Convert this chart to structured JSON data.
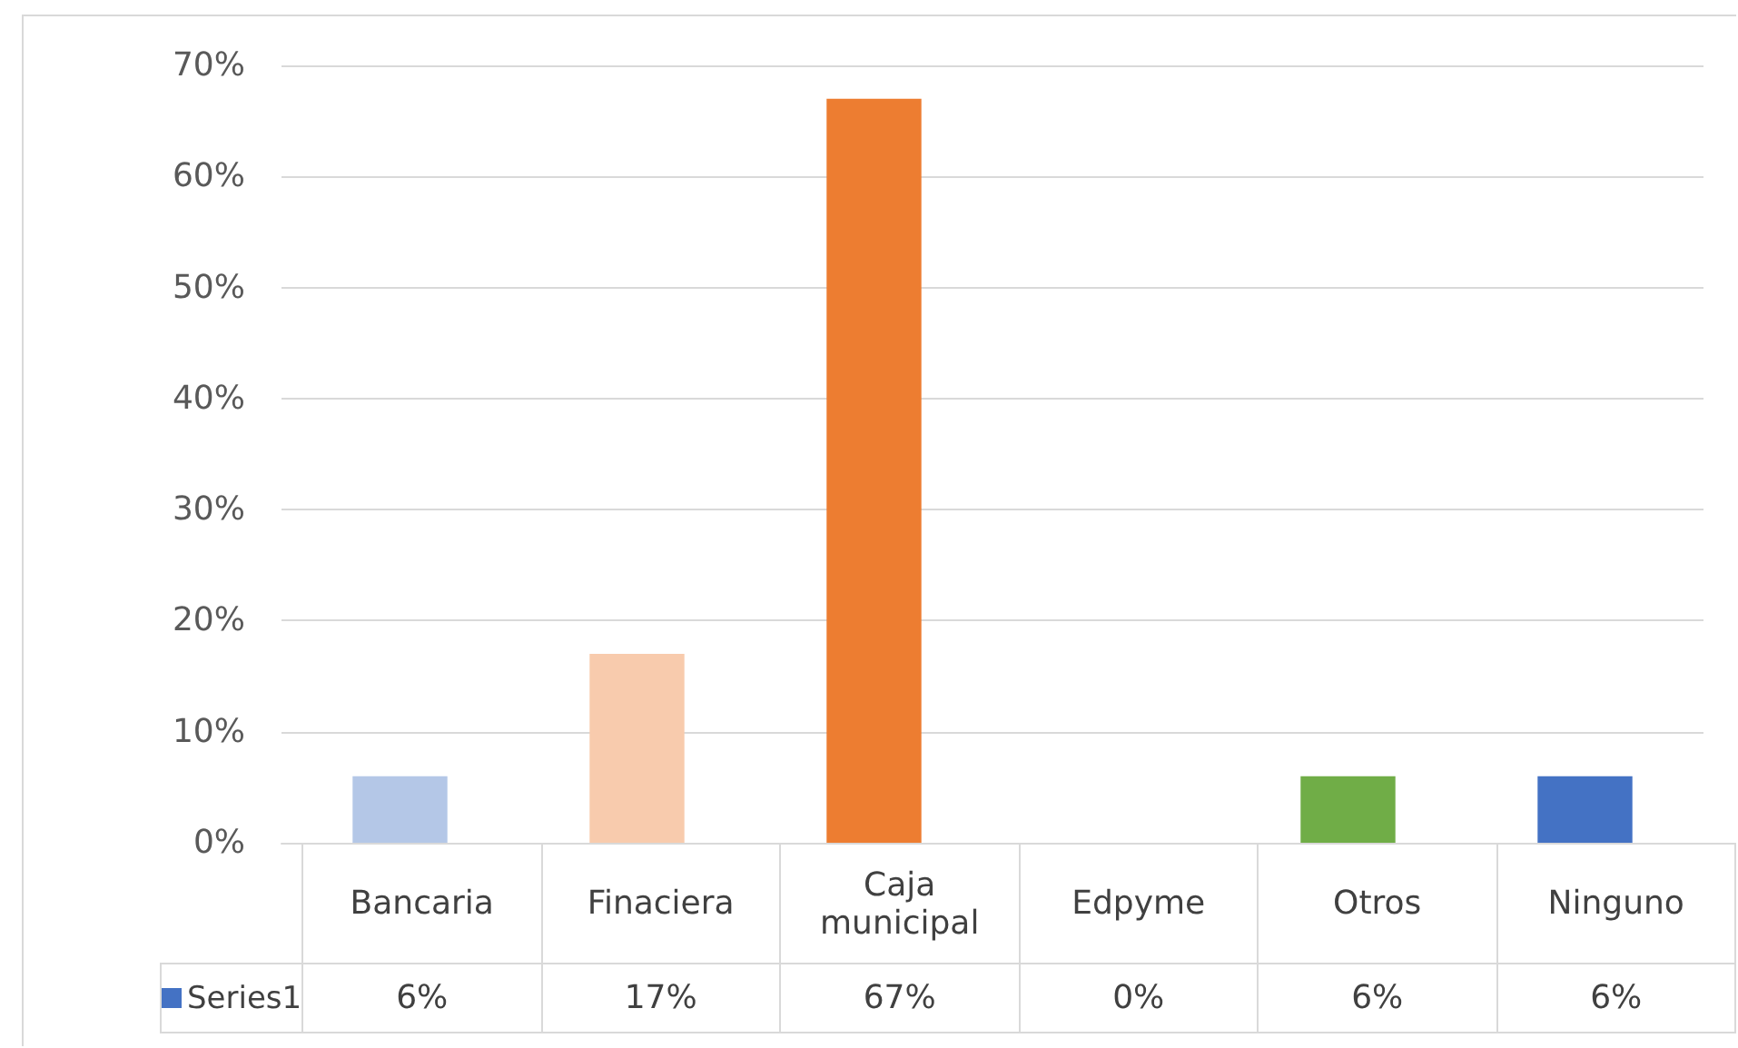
{
  "chart_data": {
    "type": "bar",
    "categories": [
      "Bancaria",
      "Finaciera",
      "Caja municipal",
      "Edpyme",
      "Otros",
      "Ninguno"
    ],
    "series": [
      {
        "name": "Series1",
        "color": "#4472c4",
        "colors": [
          "#b4c7e7",
          "#f8cbad",
          "#ed7d31",
          "#d9d9d9",
          "#70ad47",
          "#4472c4"
        ],
        "values": [
          6,
          17,
          67,
          0,
          6,
          6
        ],
        "value_labels": [
          "6%",
          "17%",
          "67%",
          "0%",
          "6%",
          "6%"
        ]
      }
    ],
    "ylim": [
      0,
      70
    ],
    "yticks": [
      {
        "value": 0,
        "label": "0%"
      },
      {
        "value": 10,
        "label": "10%"
      },
      {
        "value": 20,
        "label": "20%"
      },
      {
        "value": 30,
        "label": "30%"
      },
      {
        "value": 40,
        "label": "40%"
      },
      {
        "value": 50,
        "label": "50%"
      },
      {
        "value": 60,
        "label": "60%"
      },
      {
        "value": 70,
        "label": "70%"
      }
    ],
    "grid": "y",
    "legend": "bottom"
  }
}
